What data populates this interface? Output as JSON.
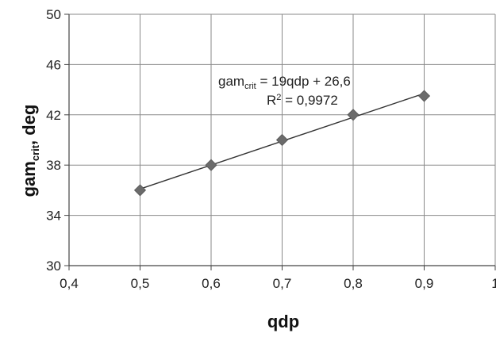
{
  "chart_data": {
    "type": "scatter",
    "xlabel": "qdp",
    "ylabel": {
      "main": "gam",
      "sub": "crit",
      "suffix": ", deg"
    },
    "xlim": [
      0.4,
      1.0
    ],
    "ylim": [
      30,
      50
    ],
    "x_ticks": [
      "0,4",
      "0,5",
      "0,6",
      "0,7",
      "0,8",
      "0,9",
      "1"
    ],
    "y_ticks": [
      "30",
      "34",
      "38",
      "42",
      "46",
      "50"
    ],
    "grid": true,
    "marker": "diamond",
    "marker_color": "#6b6b6b",
    "line_color": "#333333",
    "series": [
      {
        "x": [
          0.5,
          0.6,
          0.7,
          0.8,
          0.9
        ],
        "y": [
          36.0,
          38.0,
          40.0,
          42.0,
          43.5
        ]
      }
    ],
    "trendline": {
      "slope": 19,
      "intercept": 26.6,
      "equation": {
        "lhs": "gam",
        "lhs_sub": "crit",
        "rhs": " = 19qdp + 26,6"
      },
      "r2": {
        "lhs": "R",
        "sup": "2",
        "rhs": " = 0,9972"
      }
    }
  }
}
